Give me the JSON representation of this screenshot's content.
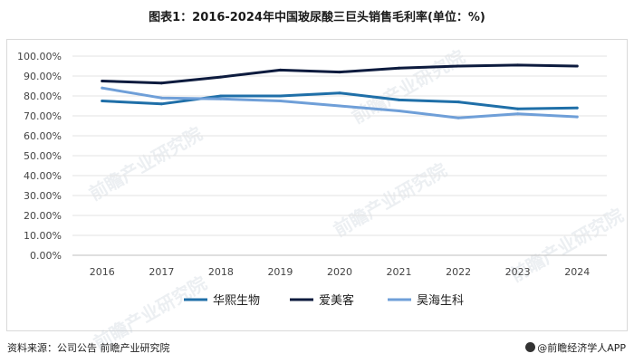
{
  "chart_data": {
    "type": "line",
    "title": "图表1：2016-2024年中国玻尿酸三巨头销售毛利率(单位：%)",
    "categories": [
      "2016",
      "2017",
      "2018",
      "2019",
      "2020",
      "2021",
      "2022",
      "2023",
      "2024"
    ],
    "ylim": [
      0,
      100
    ],
    "ytick_values": [
      0,
      10,
      20,
      30,
      40,
      50,
      60,
      70,
      80,
      90,
      100
    ],
    "ytick_labels": [
      "0.00%",
      "10.00%",
      "20.00%",
      "30.00%",
      "40.00%",
      "50.00%",
      "60.00%",
      "70.00%",
      "80.00%",
      "90.00%",
      "100.00%"
    ],
    "legend_position": "bottom",
    "grid": true,
    "series": [
      {
        "name": "华熙生物",
        "color": "#1f6fa8",
        "values": [
          77.5,
          76.0,
          80.0,
          80.0,
          81.5,
          78.0,
          77.0,
          73.5,
          74.0
        ]
      },
      {
        "name": "爱美客",
        "color": "#0d1b3e",
        "values": [
          87.5,
          86.5,
          89.5,
          93.0,
          92.0,
          94.0,
          95.0,
          95.5,
          95.0
        ]
      },
      {
        "name": "昊海生科",
        "color": "#6f9fd8",
        "values": [
          84.0,
          79.0,
          78.5,
          77.5,
          75.0,
          72.5,
          69.0,
          71.0,
          69.5
        ]
      }
    ]
  },
  "footer": {
    "source": "资料来源：公司公告 前瞻产业研究院",
    "brand": "@前瞻经济学人APP"
  },
  "watermark": {
    "text": "前瞻产业研究院"
  }
}
